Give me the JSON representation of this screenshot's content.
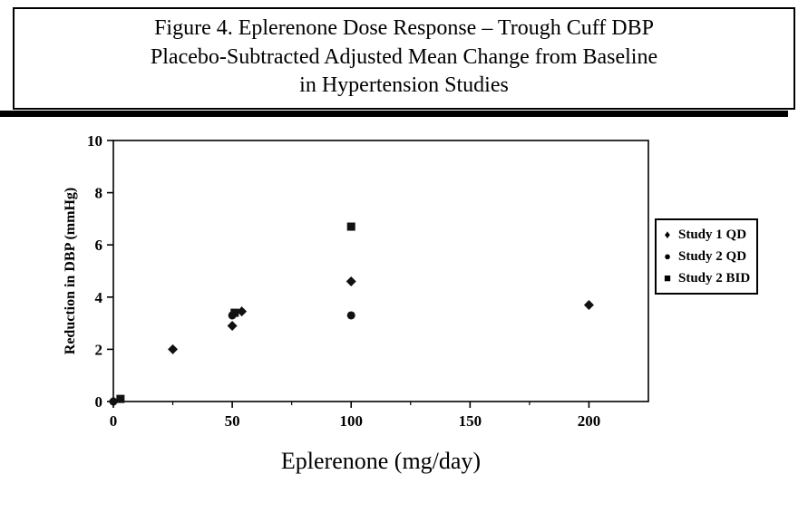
{
  "figure_title": {
    "line1": "Figure 4. Eplerenone Dose Response – Trough Cuff DBP",
    "line2": "Placebo-Subtracted Adjusted Mean Change from Baseline",
    "line3": "in Hypertension Studies"
  },
  "chart_data": {
    "type": "scatter",
    "title": "Figure 4. Eplerenone Dose Response – Trough Cuff DBP Placebo-Subtracted Adjusted Mean Change from Baseline in Hypertension Studies",
    "xlabel": "Eplerenone (mg/day)",
    "ylabel": "Reduction in DBP (mmHg)",
    "xlim": [
      0,
      225
    ],
    "ylim": [
      0,
      10
    ],
    "xticks": [
      0,
      50,
      100,
      150,
      200
    ],
    "xminorticks": [
      25,
      75,
      125,
      175
    ],
    "yticks": [
      0,
      2,
      4,
      6,
      8,
      10
    ],
    "grid": false,
    "legend_position": "right",
    "marker_color": "#111111",
    "series": [
      {
        "name": "Study 1 QD",
        "marker": "diamond",
        "points": [
          [
            0,
            0
          ],
          [
            25,
            2.0
          ],
          [
            50,
            2.9
          ],
          [
            54,
            3.45
          ],
          [
            100,
            4.6
          ],
          [
            200,
            3.7
          ]
        ]
      },
      {
        "name": "Study 2 QD",
        "marker": "circle",
        "points": [
          [
            0,
            0
          ],
          [
            50,
            3.3
          ],
          [
            100,
            3.3
          ]
        ]
      },
      {
        "name": "Study 2 BID",
        "marker": "square",
        "points": [
          [
            3,
            0.1
          ],
          [
            51,
            3.4
          ],
          [
            100,
            6.7
          ]
        ]
      }
    ],
    "legend_markers": {
      "diamond": "♦",
      "circle": "●",
      "square": "■"
    }
  }
}
